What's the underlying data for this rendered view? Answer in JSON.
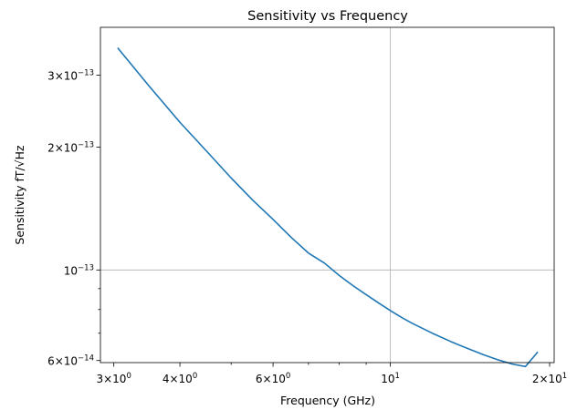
{
  "chart_data": {
    "type": "line",
    "title": "Sensitivity vs Frequency",
    "xlabel": "Frequency (GHz)",
    "ylabel": "Sensitivity fT/√Hz",
    "x_scale": "log",
    "y_scale": "log",
    "xlim": [
      2.83,
      20.4
    ],
    "ylim": [
      5.93e-14,
      3.93e-13
    ],
    "grid": "major only",
    "x_ticks": [
      {
        "value": 3,
        "base": "3×10",
        "exp": "0"
      },
      {
        "value": 4,
        "base": "4×10",
        "exp": "0"
      },
      {
        "value": 6,
        "base": "6×10",
        "exp": "0"
      },
      {
        "value": 10,
        "base": "10",
        "exp": "1"
      },
      {
        "value": 20,
        "base": "2×10",
        "exp": "1"
      }
    ],
    "x_minor_ticks": [
      5,
      7,
      8,
      9
    ],
    "y_ticks": [
      {
        "value": 6e-14,
        "base": "6×10",
        "exp": "−14"
      },
      {
        "value": 1e-13,
        "base": "10",
        "exp": "−13"
      },
      {
        "value": 2e-13,
        "base": "2×10",
        "exp": "−13"
      },
      {
        "value": 3e-13,
        "base": "3×10",
        "exp": "−13"
      }
    ],
    "y_minor_ticks": [
      7e-14,
      8e-14,
      9e-14
    ],
    "series": [
      {
        "color": "#1f77b4",
        "x": [
          3.05,
          3.5,
          4.0,
          4.5,
          5.0,
          5.5,
          6.0,
          6.5,
          7.0,
          7.5,
          8.0,
          8.5,
          9.0,
          9.5,
          10.0,
          10.5,
          11.0,
          12.0,
          13.0,
          14.0,
          15.0,
          16.0,
          17.0,
          18.0,
          19.0
        ],
        "y": [
          3.5e-13,
          2.82e-13,
          2.3e-13,
          1.95e-13,
          1.68e-13,
          1.48e-13,
          1.33e-13,
          1.2e-13,
          1.1e-13,
          1.04e-13,
          9.7e-14,
          9.15e-14,
          8.7e-14,
          8.3e-14,
          7.95e-14,
          7.65e-14,
          7.4e-14,
          7e-14,
          6.68e-14,
          6.42e-14,
          6.2e-14,
          6.02e-14,
          5.88e-14,
          5.8e-14,
          6.3e-14
        ]
      }
    ]
  }
}
